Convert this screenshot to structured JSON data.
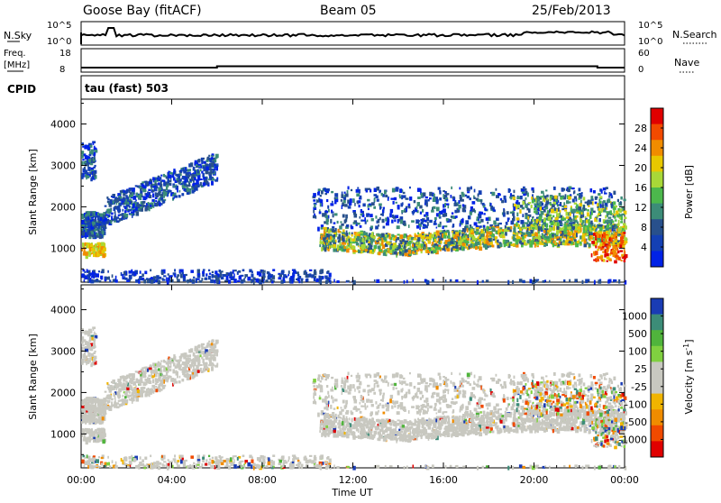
{
  "header": {
    "site": "Goose Bay (fitACF)",
    "beam": "Beam 05",
    "date": "25/Feb/2013"
  },
  "panels": {
    "sky_label": "N.Sky",
    "sky_ticks": [
      "10^5",
      "10^0"
    ],
    "search_label": "N.Search",
    "search_ticks": [
      "10^5",
      "10^0"
    ],
    "freq_label_1": "Freq.",
    "freq_label_2": "[MHz]",
    "freq_ticks": [
      "18",
      "8"
    ],
    "nave_label": "Nave",
    "nave_ticks": [
      "60",
      "0"
    ],
    "cpid_label": "CPID",
    "cpid_text": "tau (fast) 503"
  },
  "chart_data": [
    {
      "type": "heatmap",
      "parameter": "Power",
      "ylabel": "Slant Range [km]",
      "ylim": [
        180,
        4600
      ],
      "yticks": [
        "4000",
        "3000",
        "2000",
        "1000"
      ],
      "xlabel": "Time UT",
      "xlim_hours": [
        0,
        24
      ],
      "xticks": [
        "00:00",
        "04:00",
        "08:00",
        "12:00",
        "16:00",
        "20:00",
        "00:00"
      ],
      "colorbar_label": "Power [dB]",
      "colorbar_ticks": [
        "28",
        "24",
        "20",
        "16",
        "12",
        "8",
        "4"
      ],
      "colorbar_colors": [
        "#e00000",
        "#f24a00",
        "#f08c00",
        "#e8c800",
        "#a8d838",
        "#4cb84c",
        "#3c8c78",
        "#28508c",
        "#1440b4",
        "#0022e6"
      ]
    },
    {
      "type": "heatmap",
      "parameter": "Velocity",
      "ylabel": "Slant Range [km]",
      "ylim": [
        180,
        4600
      ],
      "yticks": [
        "4000",
        "3000",
        "2000",
        "1000"
      ],
      "colorbar_label": "Velocity [m s^-1]",
      "colorbar_ticks": [
        "1000",
        "500",
        "100",
        "25",
        "-25",
        "-100",
        "-500",
        "-1000"
      ],
      "colorbar_colors": [
        "#1a3cb4",
        "#3c8c78",
        "#50b43c",
        "#80d040",
        "#c8c8c0",
        "#c8c8c0",
        "#f0b400",
        "#f08c00",
        "#f04a00",
        "#e00000"
      ]
    }
  ]
}
